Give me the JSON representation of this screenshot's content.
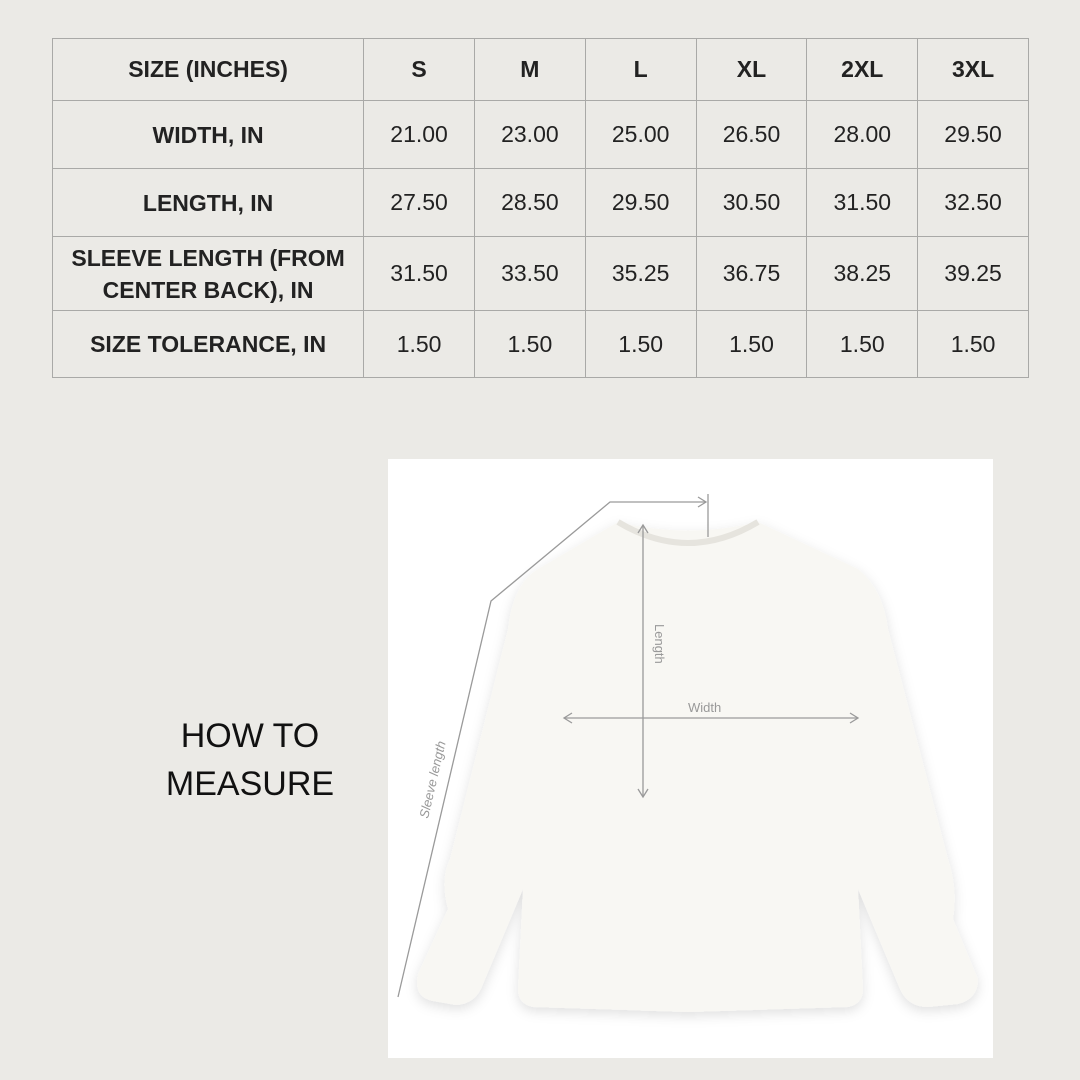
{
  "table": {
    "headers": [
      "SIZE (INCHES)",
      "S",
      "M",
      "L",
      "XL",
      "2XL",
      "3XL"
    ],
    "rows": [
      {
        "label": "WIDTH, IN",
        "values": [
          "21.00",
          "23.00",
          "25.00",
          "26.50",
          "28.00",
          "29.50"
        ]
      },
      {
        "label": "LENGTH, IN",
        "values": [
          "27.50",
          "28.50",
          "29.50",
          "30.50",
          "31.50",
          "32.50"
        ]
      },
      {
        "label": "SLEEVE LENGTH (FROM CENTER BACK), IN",
        "values": [
          "31.50",
          "33.50",
          "35.25",
          "36.75",
          "38.25",
          "39.25"
        ]
      },
      {
        "label": "SIZE TOLERANCE, IN",
        "values": [
          "1.50",
          "1.50",
          "1.50",
          "1.50",
          "1.50",
          "1.50"
        ]
      }
    ]
  },
  "how_to_measure": "HOW TO MEASURE",
  "diagram": {
    "length_label": "Length",
    "width_label": "Width",
    "sleeve_label": "Sleeve length"
  }
}
